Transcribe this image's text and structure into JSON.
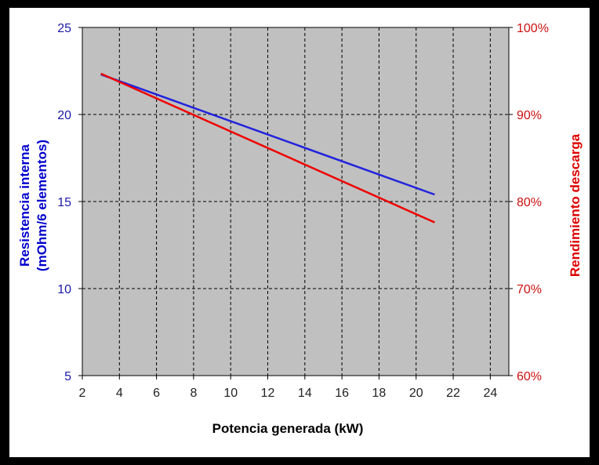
{
  "chart_data": {
    "type": "line",
    "xlabel": "Potencia generada (kW)",
    "ylabel_left": [
      "Resistencia interna",
      "(mOhm/6 elementos)"
    ],
    "ylabel_right": "Rendimiento descarga",
    "xlim": [
      2,
      25
    ],
    "xticks": [
      2,
      4,
      6,
      8,
      10,
      12,
      14,
      16,
      18,
      20,
      22,
      24
    ],
    "ylim_left": [
      5,
      25
    ],
    "yticks_left": [
      5,
      10,
      15,
      20,
      25
    ],
    "ylim_right": [
      0.6,
      1.0
    ],
    "yticks_right": [
      "60%",
      "70%",
      "80%",
      "90%",
      "100%"
    ],
    "grid": true,
    "plot_background": "#c0c0c0",
    "series": [
      {
        "axis": "left",
        "color": "#2222dd",
        "x": [
          3,
          21
        ],
        "values": [
          22.3,
          15.4
        ]
      },
      {
        "axis": "right",
        "color": "#ee0000",
        "x": [
          3,
          21
        ],
        "values": [
          0.947,
          0.776
        ]
      }
    ]
  }
}
